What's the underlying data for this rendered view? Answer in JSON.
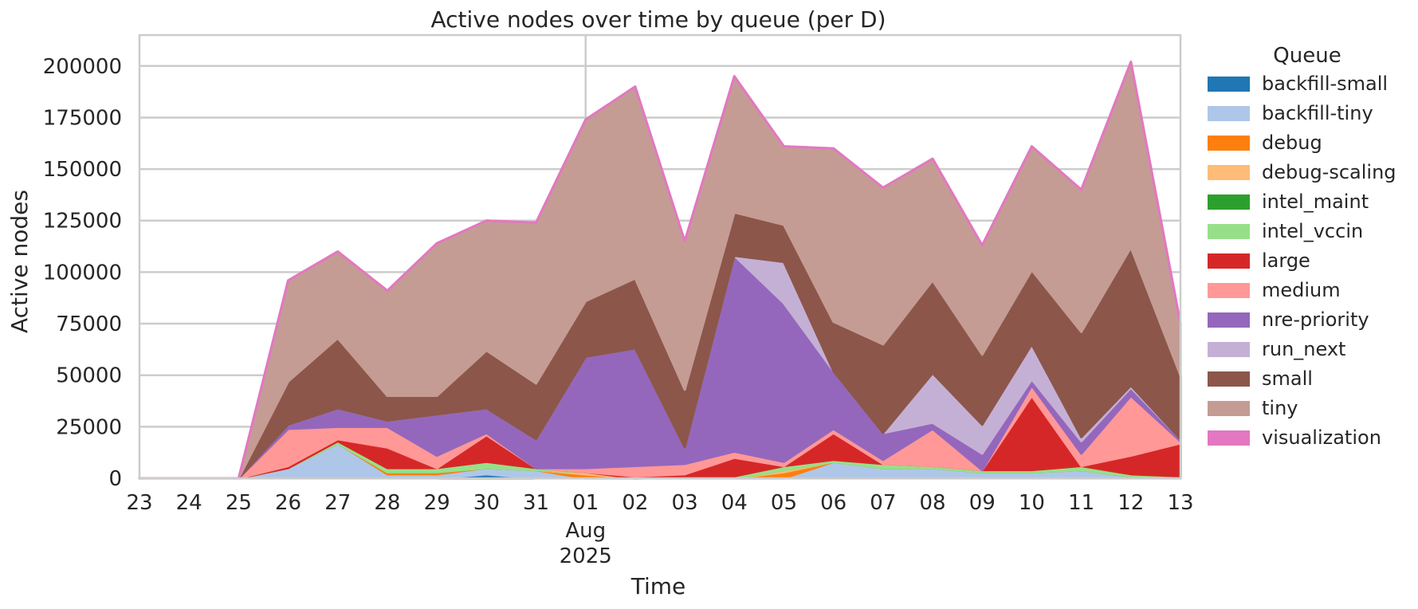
{
  "chart_data": {
    "type": "area",
    "stacked": true,
    "title": "Active nodes over time by queue (per D)",
    "xlabel": "Time",
    "ylabel": "Active nodes",
    "ylim": [
      0,
      215000
    ],
    "yticks": [
      0,
      25000,
      50000,
      75000,
      100000,
      125000,
      150000,
      175000,
      200000
    ],
    "grid": true,
    "legend": {
      "title": "Queue",
      "placement": "outside-right"
    },
    "x": [
      "2025-07-23",
      "2025-07-24",
      "2025-07-25",
      "2025-07-26",
      "2025-07-27",
      "2025-07-28",
      "2025-07-29",
      "2025-07-30",
      "2025-07-31",
      "2025-08-01",
      "2025-08-02",
      "2025-08-03",
      "2025-08-04",
      "2025-08-05",
      "2025-08-06",
      "2025-08-07",
      "2025-08-08",
      "2025-08-09",
      "2025-08-10",
      "2025-08-11",
      "2025-08-12",
      "2025-08-13"
    ],
    "xtick_labels": [
      "23",
      "24",
      "25",
      "26",
      "27",
      "28",
      "29",
      "30",
      "31",
      "01",
      "02",
      "03",
      "04",
      "05",
      "06",
      "07",
      "08",
      "09",
      "10",
      "11",
      "12",
      "13"
    ],
    "xtick_sublabels": {
      "01": [
        "Aug",
        "2025"
      ]
    },
    "series": [
      {
        "name": "backfill-small",
        "color": "#1f77b4",
        "values": [
          0,
          0,
          0,
          0,
          0,
          0,
          0,
          2000,
          0,
          0,
          0,
          0,
          0,
          0,
          0,
          0,
          0,
          0,
          0,
          0,
          0,
          0
        ]
      },
      {
        "name": "backfill-tiny",
        "color": "#aec7e8",
        "values": [
          0,
          0,
          0,
          5000,
          17000,
          2000,
          2000,
          3000,
          4000,
          0,
          0,
          0,
          0,
          0,
          8000,
          5000,
          5000,
          3000,
          3000,
          4000,
          1000,
          0
        ]
      },
      {
        "name": "debug",
        "color": "#ff7f0e",
        "values": [
          0,
          0,
          0,
          0,
          0,
          1000,
          1000,
          0,
          0,
          2000,
          0,
          0,
          0,
          3000,
          0,
          0,
          0,
          0,
          0,
          0,
          0,
          0
        ]
      },
      {
        "name": "debug-scaling",
        "color": "#ffbb78",
        "values": [
          0,
          0,
          0,
          0,
          0,
          0,
          0,
          0,
          0,
          1000,
          0,
          0,
          0,
          1000,
          0,
          0,
          0,
          0,
          0,
          0,
          0,
          0
        ]
      },
      {
        "name": "intel_maint",
        "color": "#2ca02c",
        "values": [
          0,
          0,
          0,
          0,
          0,
          0,
          0,
          0,
          0,
          0,
          0,
          0,
          0,
          0,
          0,
          0,
          0,
          0,
          0,
          0,
          0,
          0
        ]
      },
      {
        "name": "intel_vccin",
        "color": "#98df8a",
        "values": [
          0,
          0,
          0,
          0,
          1000,
          2000,
          2000,
          3000,
          1000,
          0,
          0,
          1000,
          1000,
          2000,
          1000,
          2000,
          1000,
          1000,
          1000,
          2000,
          1000,
          1000
        ]
      },
      {
        "name": "large",
        "color": "#d62728",
        "values": [
          0,
          0,
          0,
          1000,
          1000,
          10000,
          0,
          13000,
          0,
          0,
          1000,
          1000,
          9000,
          0,
          13000,
          0,
          0,
          0,
          36000,
          0,
          9000,
          16000
        ]
      },
      {
        "name": "medium",
        "color": "#ff9896",
        "values": [
          0,
          0,
          0,
          18000,
          6000,
          10000,
          6000,
          1000,
          0,
          2000,
          5000,
          5000,
          3000,
          2000,
          2000,
          2000,
          18000,
          0,
          5000,
          6000,
          29000,
          1000
        ]
      },
      {
        "name": "nre-priority",
        "color": "#9467bd",
        "values": [
          0,
          0,
          0,
          2000,
          9000,
          3000,
          20000,
          12000,
          14000,
          54000,
          57000,
          8000,
          95000,
          77000,
          28000,
          13000,
          3000,
          8000,
          3000,
          6000,
          4000,
          1000
        ]
      },
      {
        "name": "run_next",
        "color": "#c5b0d5",
        "values": [
          0,
          0,
          0,
          0,
          0,
          0,
          0,
          0,
          0,
          0,
          0,
          0,
          0,
          20000,
          0,
          0,
          24000,
          14000,
          17000,
          2000,
          1000,
          0
        ]
      },
      {
        "name": "small",
        "color": "#8c564b",
        "values": [
          0,
          0,
          0,
          21000,
          34000,
          12000,
          9000,
          28000,
          27000,
          27000,
          34000,
          28000,
          21000,
          18000,
          24000,
          43000,
          45000,
          34000,
          36000,
          51000,
          67000,
          31000
        ]
      },
      {
        "name": "tiny",
        "color": "#c49c94",
        "values": [
          0,
          0,
          0,
          49000,
          42000,
          51000,
          74000,
          63000,
          78000,
          88000,
          93000,
          72000,
          66000,
          38000,
          84000,
          76000,
          59000,
          53000,
          60000,
          69000,
          90000,
          25000
        ]
      },
      {
        "name": "visualization",
        "color": "#e377c2",
        "values": [
          0,
          0,
          0,
          0,
          0,
          0,
          0,
          0,
          0,
          0,
          0,
          0,
          0,
          0,
          0,
          0,
          0,
          0,
          0,
          0,
          0,
          0
        ]
      }
    ]
  }
}
